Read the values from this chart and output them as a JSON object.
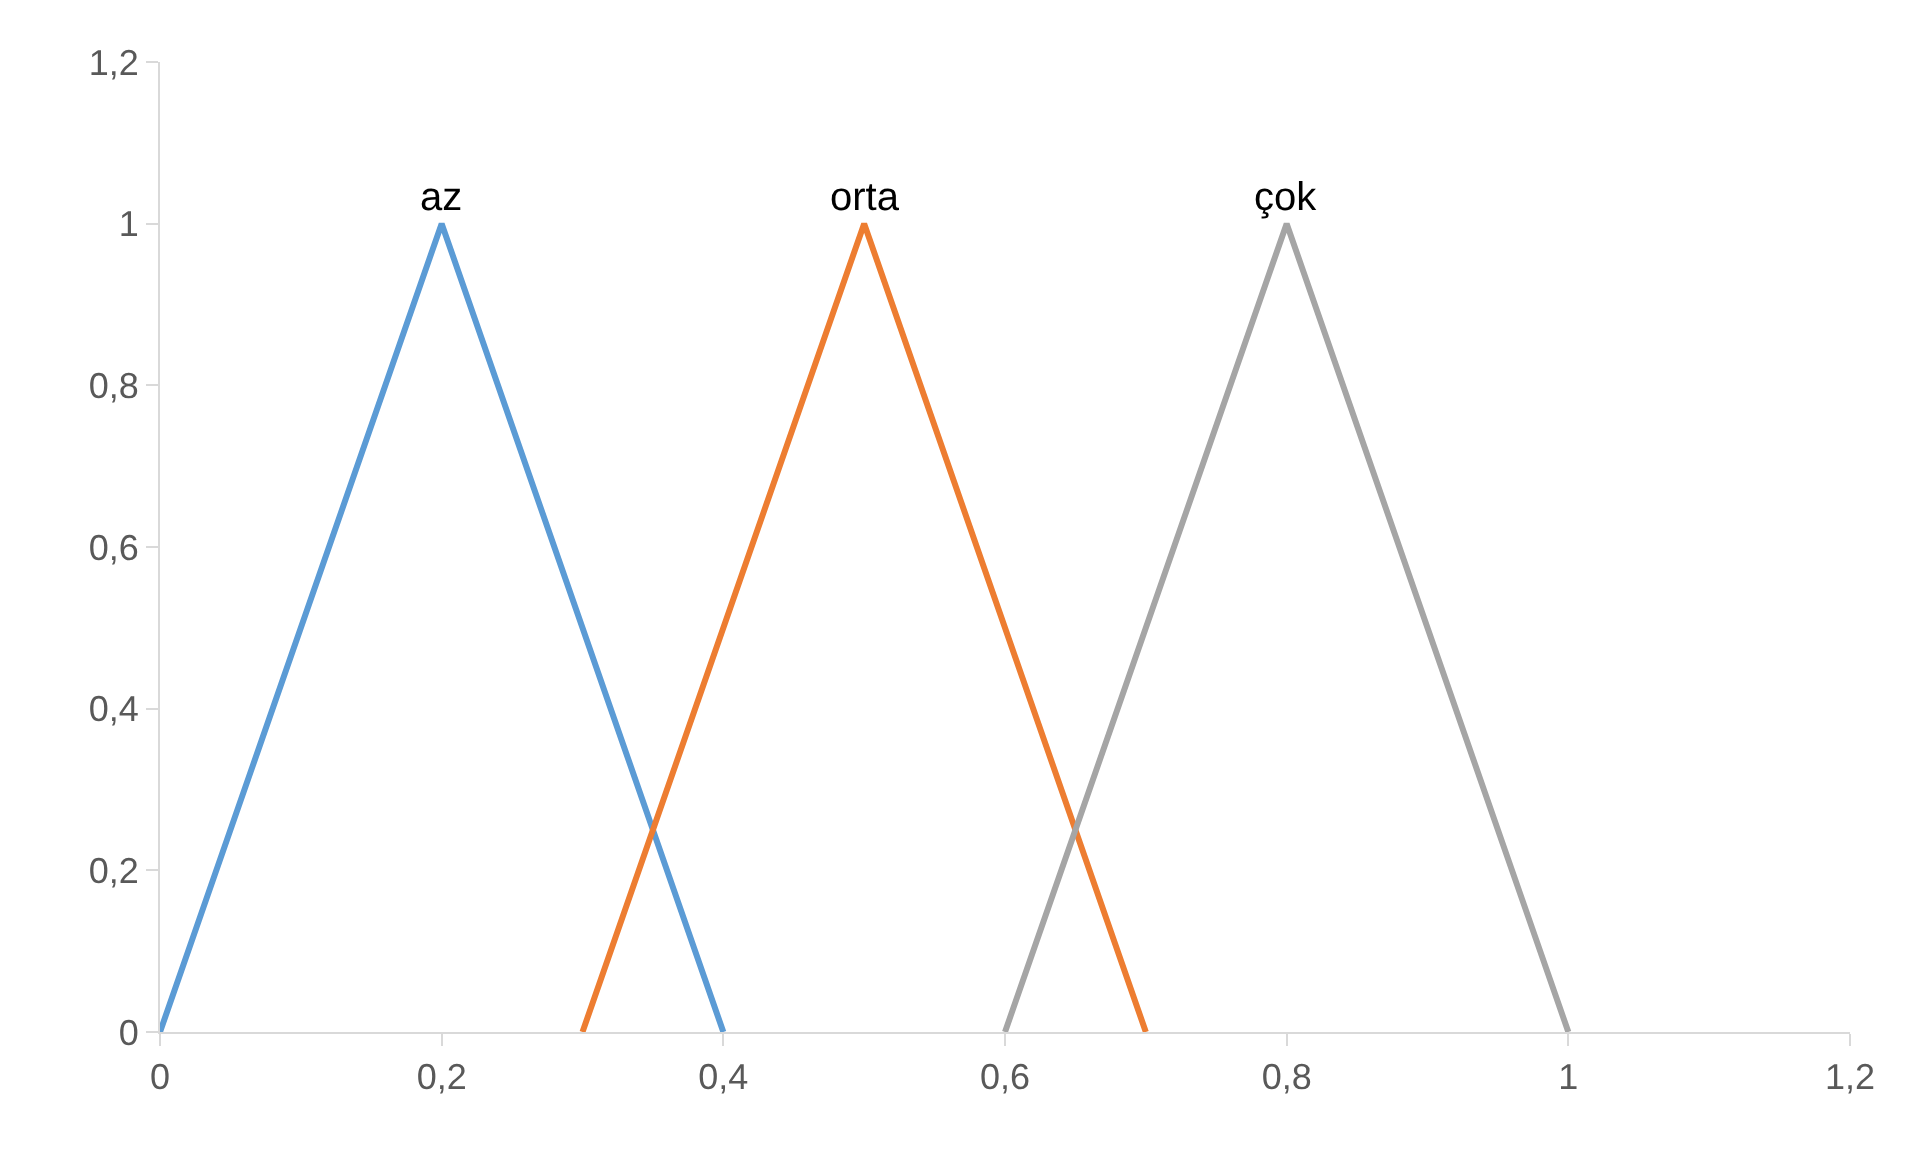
{
  "chart_data": {
    "type": "line",
    "legend": false,
    "grid": false,
    "marker": "none",
    "line_style": "solid",
    "xlim": [
      0,
      1.2
    ],
    "ylim": [
      0,
      1.2
    ],
    "xticks": [
      0,
      {
        "value": 0.2,
        "label": "0,2"
      },
      {
        "value": 0.4,
        "label": "0,4"
      },
      {
        "value": 0.6,
        "label": "0,6"
      },
      {
        "value": 0.8,
        "label": "0,8"
      },
      1,
      {
        "value": 1.2,
        "label": "1,2"
      }
    ],
    "yticks": [
      0,
      {
        "value": 0.2,
        "label": "0,2"
      },
      {
        "value": 0.4,
        "label": "0,4"
      },
      {
        "value": 0.6,
        "label": "0,6"
      },
      {
        "value": 0.8,
        "label": "0,8"
      },
      1,
      {
        "value": 1.2,
        "label": "1,2"
      }
    ],
    "series": [
      {
        "name": "az",
        "color": "#5b9bd5",
        "x": [
          0,
          0.2,
          0.4
        ],
        "values": [
          0,
          1,
          0
        ]
      },
      {
        "name": "orta",
        "color": "#ed7d31",
        "x": [
          0.3,
          0.5,
          0.7
        ],
        "values": [
          0,
          1,
          0
        ]
      },
      {
        "name": "çok",
        "color": "#a5a5a5",
        "x": [
          0.6,
          0.8,
          1
        ],
        "values": [
          0,
          1,
          0
        ]
      }
    ]
  }
}
